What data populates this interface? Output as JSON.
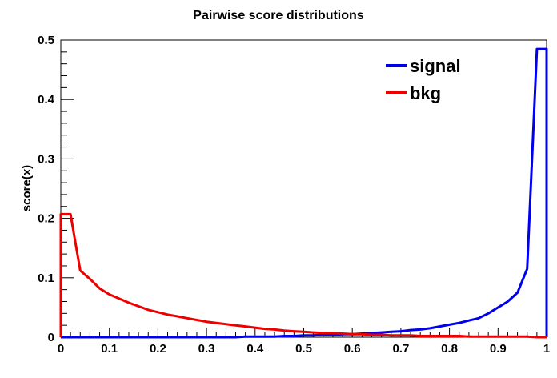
{
  "chart_data": {
    "type": "line",
    "title": "Pairwise score distributions",
    "xlabel": "",
    "ylabel": "score(x)",
    "xlim": [
      0,
      1
    ],
    "ylim": [
      0,
      0.5
    ],
    "xticks": [
      "0",
      "0.1",
      "0.2",
      "0.3",
      "0.4",
      "0.5",
      "0.6",
      "0.7",
      "0.8",
      "0.9",
      "1"
    ],
    "yticks": [
      "0",
      "0.1",
      "0.2",
      "0.3",
      "0.4",
      "0.5"
    ],
    "grid": false,
    "legend_position": "top-right",
    "x": [
      0.0,
      0.02,
      0.04,
      0.06,
      0.08,
      0.1,
      0.12,
      0.14,
      0.16,
      0.18,
      0.2,
      0.22,
      0.24,
      0.26,
      0.28,
      0.3,
      0.32,
      0.34,
      0.36,
      0.38,
      0.4,
      0.42,
      0.44,
      0.46,
      0.48,
      0.5,
      0.52,
      0.54,
      0.56,
      0.58,
      0.6,
      0.62,
      0.64,
      0.66,
      0.68,
      0.7,
      0.72,
      0.74,
      0.76,
      0.78,
      0.8,
      0.82,
      0.84,
      0.86,
      0.88,
      0.9,
      0.92,
      0.94,
      0.96,
      0.98,
      1.0
    ],
    "series": [
      {
        "name": "signal",
        "color": "#0000ee",
        "values": [
          0.0,
          0.0,
          0.0,
          0.0,
          0.0,
          0.0,
          0.0,
          0.0,
          0.0,
          0.0,
          0.0,
          0.0,
          0.0,
          0.0,
          0.0,
          0.0,
          0.0,
          0.0,
          0.0,
          0.001,
          0.001,
          0.001,
          0.001,
          0.002,
          0.002,
          0.003,
          0.003,
          0.004,
          0.004,
          0.005,
          0.005,
          0.006,
          0.007,
          0.008,
          0.009,
          0.01,
          0.012,
          0.013,
          0.015,
          0.018,
          0.021,
          0.024,
          0.028,
          0.032,
          0.04,
          0.05,
          0.06,
          0.075,
          0.115,
          0.485,
          0.485
        ]
      },
      {
        "name": "bkg",
        "color": "#ee0000",
        "values": [
          0.207,
          0.207,
          0.112,
          0.098,
          0.082,
          0.072,
          0.065,
          0.058,
          0.052,
          0.046,
          0.042,
          0.038,
          0.035,
          0.032,
          0.029,
          0.026,
          0.024,
          0.022,
          0.02,
          0.018,
          0.016,
          0.014,
          0.013,
          0.011,
          0.01,
          0.009,
          0.008,
          0.007,
          0.007,
          0.006,
          0.005,
          0.005,
          0.004,
          0.004,
          0.003,
          0.003,
          0.003,
          0.002,
          0.002,
          0.002,
          0.002,
          0.002,
          0.001,
          0.001,
          0.001,
          0.001,
          0.001,
          0.001,
          0.001,
          0.0,
          0.0
        ]
      }
    ]
  }
}
